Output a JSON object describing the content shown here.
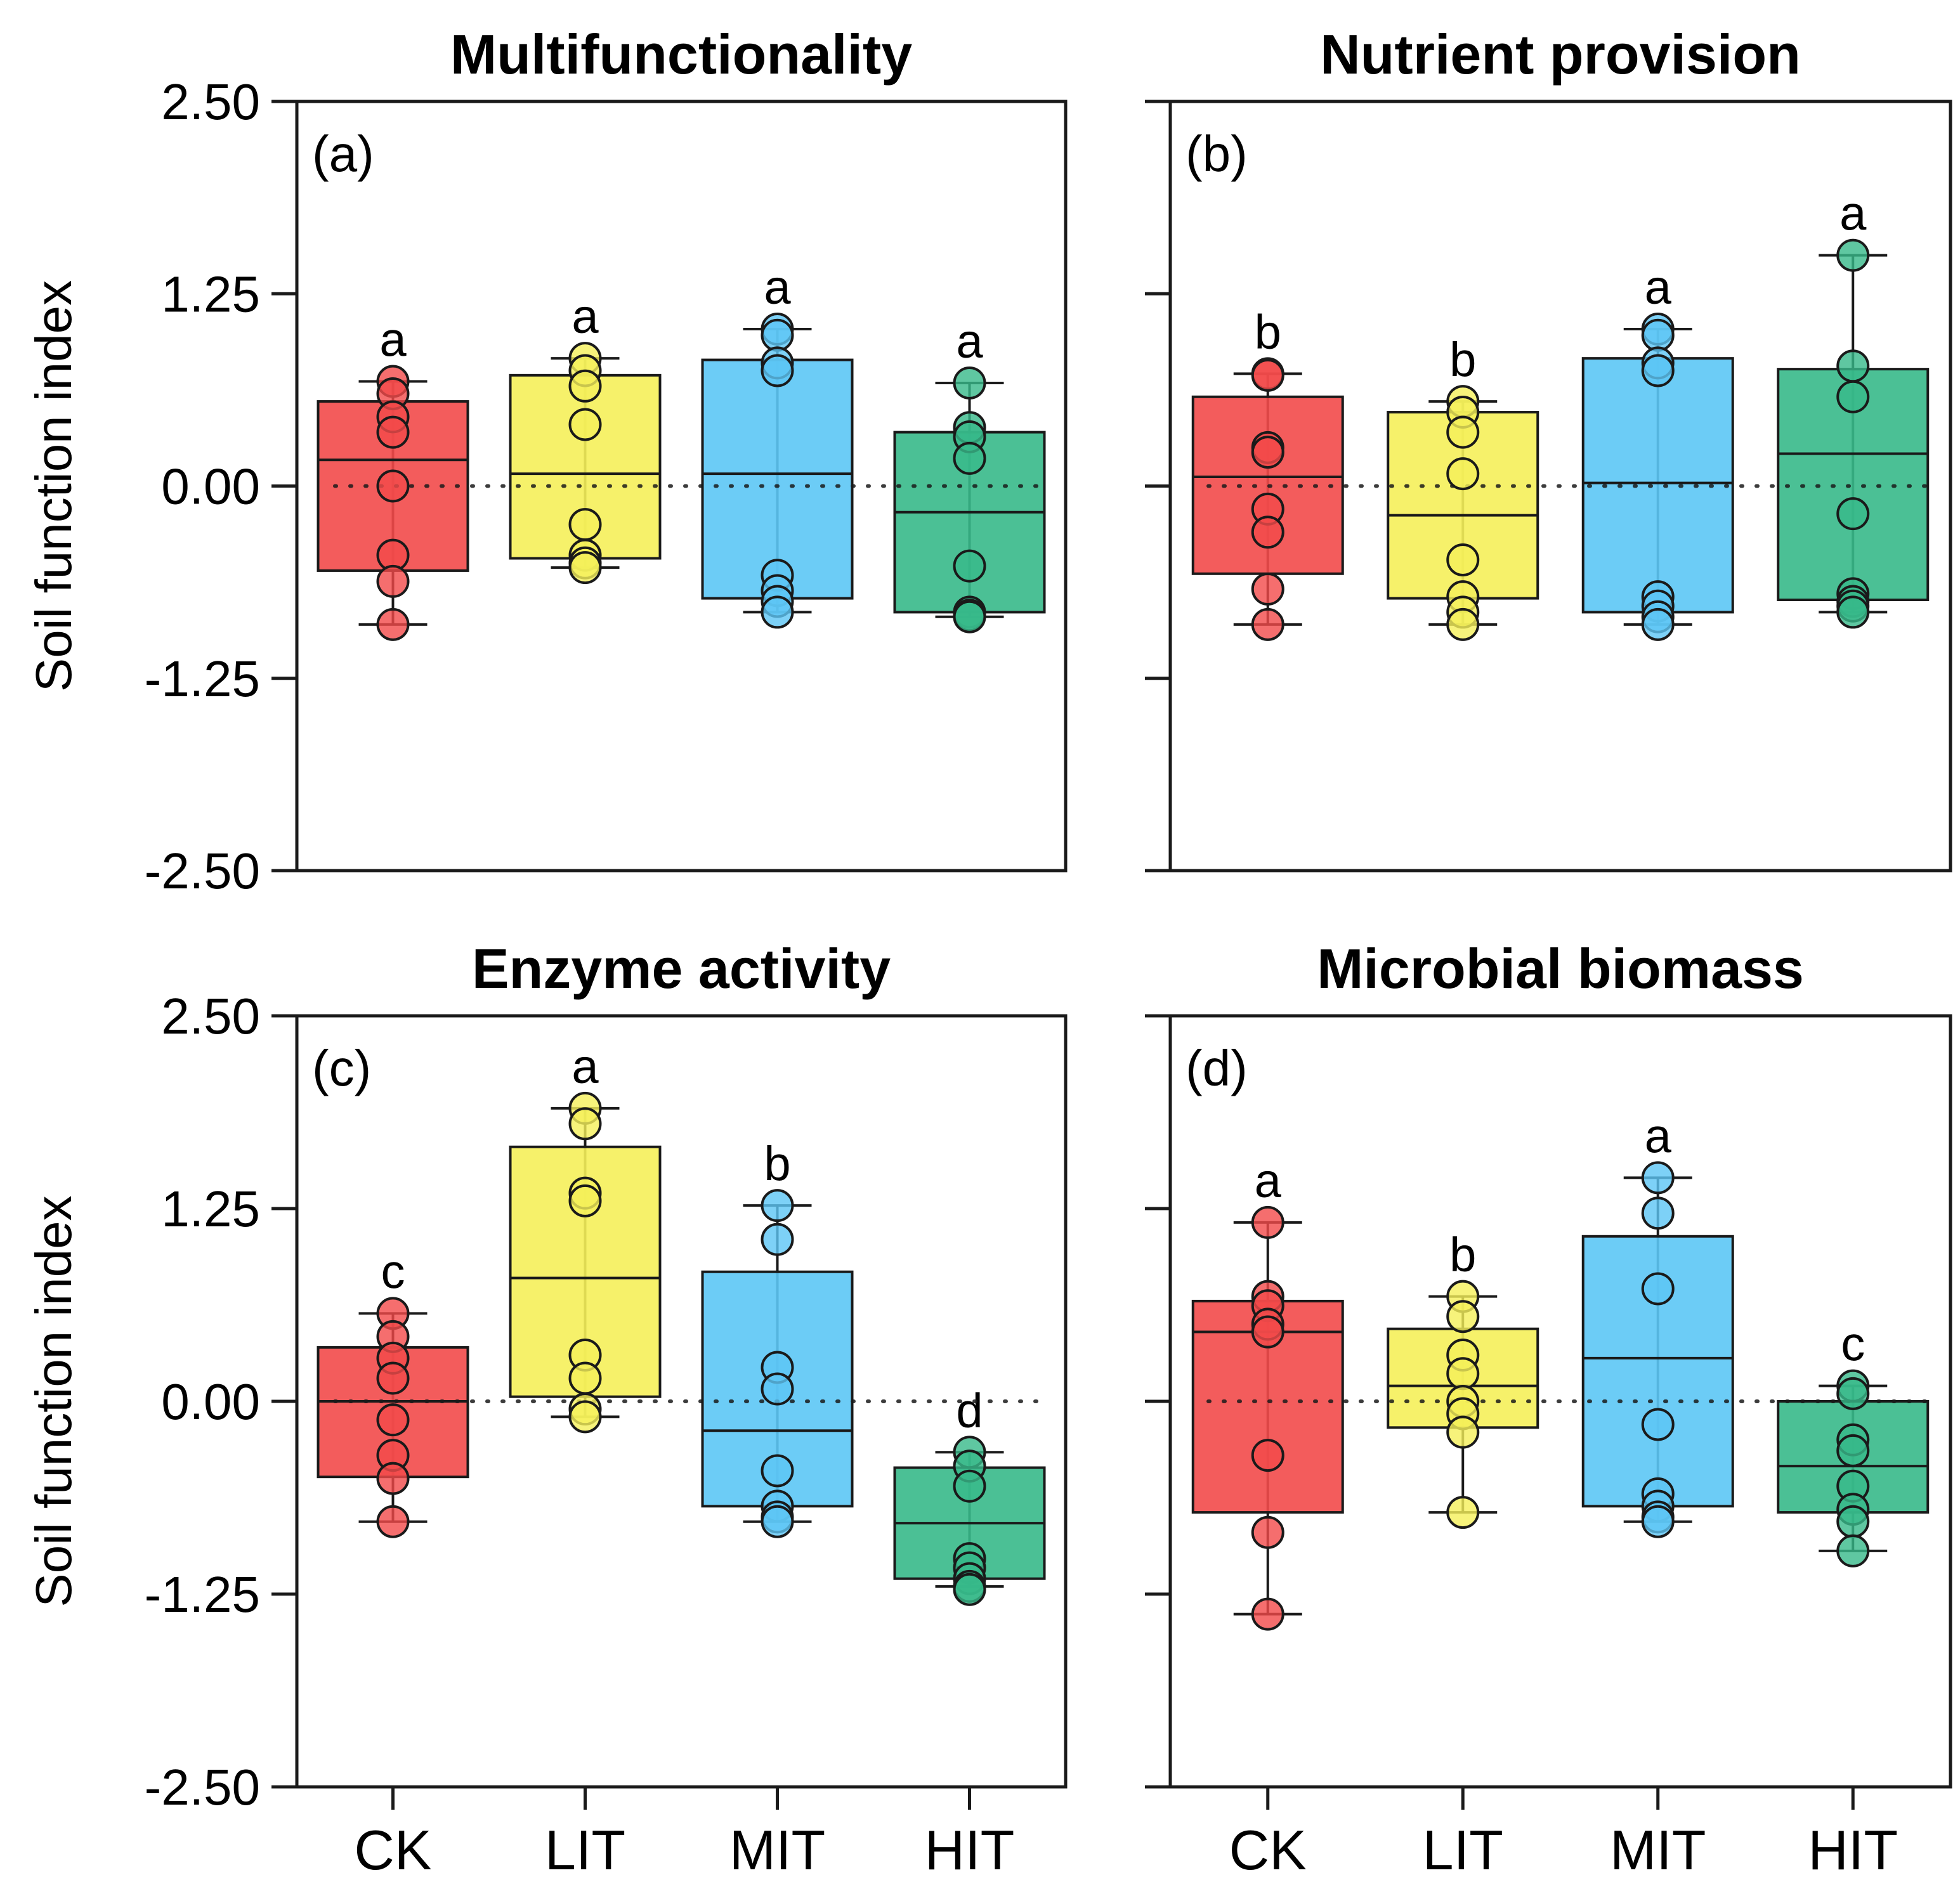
{
  "colors": {
    "CK": "#f24a4a",
    "LIT": "#f5f05a",
    "MIT": "#5cc6f5",
    "HIT": "#37b98a",
    "frame": "#1a1a1a"
  },
  "chart_data": [
    {
      "type": "box",
      "title": "Multifunctionality",
      "tag": "(a)",
      "ylabel": "Soil function index",
      "ylim": [
        -2.5,
        2.5
      ],
      "yticks": [
        "2.50",
        "1.25",
        "0.00",
        "-1.25",
        "-2.50"
      ],
      "reference_line": 0,
      "categories": [
        "CK",
        "LIT",
        "MIT",
        "HIT"
      ],
      "groups": [
        {
          "name": "CK",
          "q1": -0.55,
          "median": 0.17,
          "q3": 0.55,
          "whisker_low": -0.9,
          "whisker_high": 0.68,
          "sig": "a",
          "points": [
            0.68,
            0.6,
            0.45,
            0.35,
            0.0,
            -0.45,
            -0.62,
            -0.9
          ]
        },
        {
          "name": "LIT",
          "q1": -0.47,
          "median": 0.08,
          "q3": 0.72,
          "whisker_low": -0.53,
          "whisker_high": 0.83,
          "sig": "a",
          "points": [
            0.83,
            0.75,
            0.65,
            0.4,
            -0.25,
            -0.45,
            -0.5,
            -0.53
          ]
        },
        {
          "name": "MIT",
          "q1": -0.73,
          "median": 0.08,
          "q3": 0.82,
          "whisker_low": -0.82,
          "whisker_high": 1.02,
          "sig": "a",
          "points": [
            1.02,
            0.98,
            0.8,
            0.75,
            -0.58,
            -0.68,
            -0.75,
            -0.82
          ]
        },
        {
          "name": "HIT",
          "q1": -0.82,
          "median": -0.17,
          "q3": 0.35,
          "whisker_low": -0.85,
          "whisker_high": 0.67,
          "sig": "a",
          "points": [
            0.67,
            0.38,
            0.32,
            0.18,
            -0.52,
            -0.82,
            -0.84,
            -0.85
          ]
        }
      ]
    },
    {
      "type": "box",
      "title": "Nutrient provision",
      "tag": "(b)",
      "ylabel": "",
      "ylim": [
        -2.5,
        2.5
      ],
      "yticks": [
        "",
        "",
        "",
        "",
        ""
      ],
      "reference_line": 0,
      "categories": [
        "CK",
        "LIT",
        "MIT",
        "HIT"
      ],
      "groups": [
        {
          "name": "CK",
          "q1": -0.57,
          "median": 0.06,
          "q3": 0.58,
          "whisker_low": -0.9,
          "whisker_high": 0.73,
          "sig": "b",
          "points": [
            0.73,
            0.72,
            0.25,
            0.22,
            -0.15,
            -0.3,
            -0.67,
            -0.9
          ]
        },
        {
          "name": "LIT",
          "q1": -0.73,
          "median": -0.19,
          "q3": 0.48,
          "whisker_low": -0.9,
          "whisker_high": 0.55,
          "sig": "b",
          "points": [
            0.55,
            0.48,
            0.35,
            0.08,
            -0.48,
            -0.72,
            -0.82,
            -0.9
          ]
        },
        {
          "name": "MIT",
          "q1": -0.82,
          "median": 0.02,
          "q3": 0.83,
          "whisker_low": -0.9,
          "whisker_high": 1.02,
          "sig": "a",
          "points": [
            1.02,
            0.98,
            0.8,
            0.75,
            -0.72,
            -0.78,
            -0.85,
            -0.9
          ]
        },
        {
          "name": "HIT",
          "q1": -0.74,
          "median": 0.21,
          "q3": 0.76,
          "whisker_low": -0.82,
          "whisker_high": 1.5,
          "sig": "a",
          "points": [
            1.5,
            0.78,
            0.58,
            -0.18,
            -0.7,
            -0.75,
            -0.78,
            -0.82
          ]
        }
      ]
    },
    {
      "type": "box",
      "title": "Enzyme activity",
      "tag": "(c)",
      "ylabel": "Soil function index",
      "ylim": [
        -2.5,
        2.5
      ],
      "yticks": [
        "2.50",
        "1.25",
        "0.00",
        "-1.25",
        "-2.50"
      ],
      "reference_line": 0,
      "categories": [
        "CK",
        "LIT",
        "MIT",
        "HIT"
      ],
      "groups": [
        {
          "name": "CK",
          "q1": -0.49,
          "median": 0.0,
          "q3": 0.35,
          "whisker_low": -0.78,
          "whisker_high": 0.57,
          "sig": "c",
          "points": [
            0.57,
            0.42,
            0.28,
            0.15,
            -0.12,
            -0.35,
            -0.5,
            -0.78
          ]
        },
        {
          "name": "LIT",
          "q1": 0.03,
          "median": 0.8,
          "q3": 1.65,
          "whisker_low": -0.1,
          "whisker_high": 1.9,
          "sig": "a",
          "points": [
            1.9,
            1.8,
            1.35,
            1.3,
            0.3,
            0.15,
            -0.05,
            -0.1
          ]
        },
        {
          "name": "MIT",
          "q1": -0.68,
          "median": -0.19,
          "q3": 0.84,
          "whisker_low": -0.78,
          "whisker_high": 1.27,
          "sig": "b",
          "points": [
            1.27,
            1.05,
            0.22,
            0.08,
            -0.45,
            -0.68,
            -0.75,
            -0.78
          ]
        },
        {
          "name": "HIT",
          "q1": -1.15,
          "median": -0.79,
          "q3": -0.43,
          "whisker_low": -1.2,
          "whisker_high": -0.33,
          "sig": "d",
          "points": [
            -0.33,
            -0.42,
            -0.55,
            -1.02,
            -1.08,
            -1.15,
            -1.2,
            -1.22
          ]
        }
      ]
    },
    {
      "type": "box",
      "title": "Microbial biomass",
      "tag": "(d)",
      "ylabel": "",
      "ylim": [
        -2.5,
        2.5
      ],
      "yticks": [
        "",
        "",
        "",
        "",
        ""
      ],
      "reference_line": 0,
      "categories": [
        "CK",
        "LIT",
        "MIT",
        "HIT"
      ],
      "groups": [
        {
          "name": "CK",
          "q1": -0.72,
          "median": 0.45,
          "q3": 0.65,
          "whisker_low": -1.38,
          "whisker_high": 1.16,
          "sig": "a",
          "points": [
            1.16,
            0.68,
            0.62,
            0.5,
            0.45,
            -0.35,
            -0.85,
            -1.38
          ]
        },
        {
          "name": "LIT",
          "q1": -0.17,
          "median": 0.1,
          "q3": 0.47,
          "whisker_low": -0.72,
          "whisker_high": 0.68,
          "sig": "b",
          "points": [
            0.68,
            0.55,
            0.3,
            0.18,
            0.0,
            -0.08,
            -0.2,
            -0.72
          ]
        },
        {
          "name": "MIT",
          "q1": -0.68,
          "median": 0.28,
          "q3": 1.07,
          "whisker_low": -0.78,
          "whisker_high": 1.45,
          "sig": "a",
          "points": [
            1.45,
            1.22,
            0.73,
            -0.15,
            -0.6,
            -0.68,
            -0.75,
            -0.78
          ]
        },
        {
          "name": "HIT",
          "q1": -0.72,
          "median": -0.42,
          "q3": 0.0,
          "whisker_low": -0.97,
          "whisker_high": 0.1,
          "sig": "c",
          "points": [
            0.1,
            0.05,
            -0.25,
            -0.32,
            -0.55,
            -0.7,
            -0.78,
            -0.97
          ]
        }
      ]
    }
  ]
}
